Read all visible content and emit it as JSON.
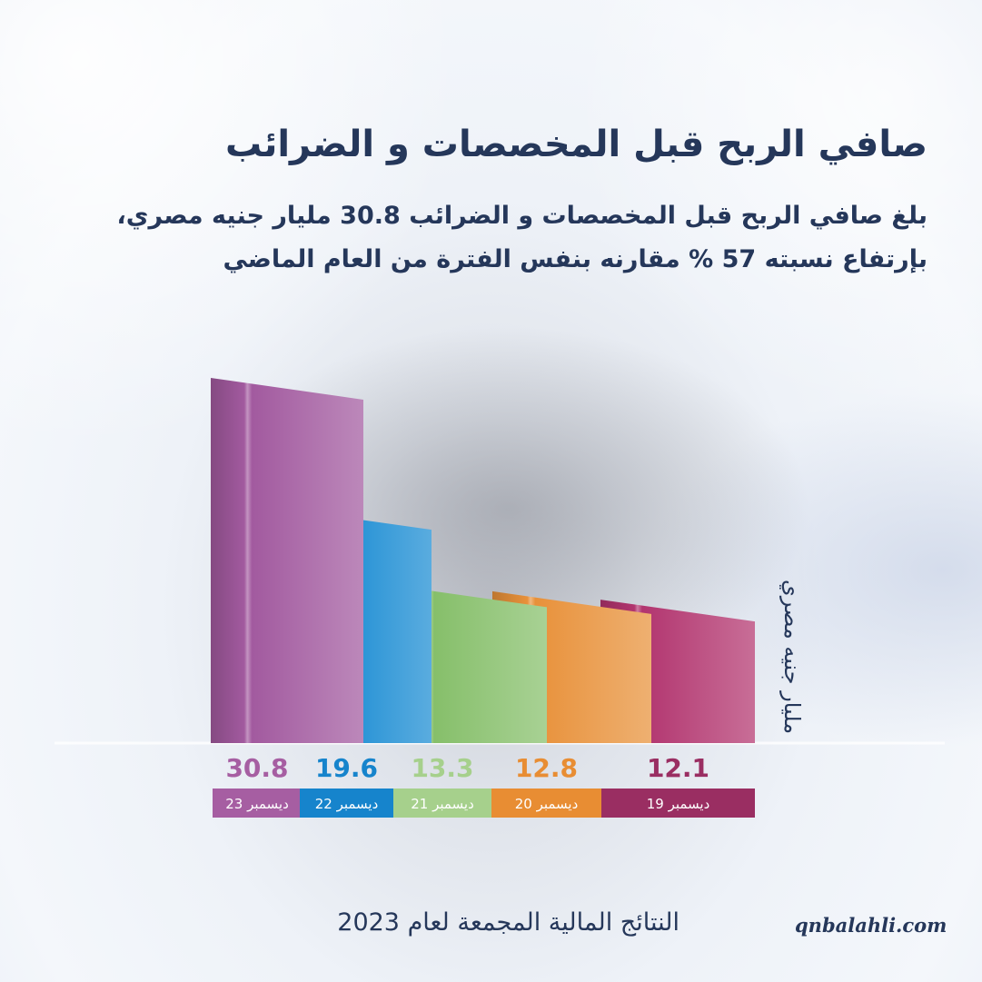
{
  "header": {
    "title": "صافي الربح قبل المخصصات و الضرائب",
    "subtitle_line1": "بلغ صافي الربح قبل المخصصات و الضرائب 30.8 مليار جنيه مصري،",
    "subtitle_line2": "بإرتفاع نسبته 57 % مقارنه بنفس الفترة من العام الماضي"
  },
  "footer": {
    "text": "النتائج المالية المجمعة لعام 2023",
    "website": "qnbalahli.com"
  },
  "chart_data": {
    "type": "bar",
    "categories": [
      "ديسمبر 23",
      "ديسمبر 22",
      "ديسمبر 21",
      "ديسمبر 20",
      "ديسمبر 19"
    ],
    "values": [
      30.8,
      19.6,
      13.3,
      12.8,
      12.1
    ],
    "value_labels": [
      "30.8",
      "19.6",
      "13.3",
      "12.8",
      "12.1"
    ],
    "colors": [
      "#a25a9f",
      "#1a8cd3",
      "#86bf6a",
      "#e8913a",
      "#b2356f"
    ],
    "label_colors": [
      "#a65ea2",
      "#1684cc",
      "#a6d08c",
      "#e88d33",
      "#9a2e62"
    ],
    "ylabel": "مليار جنيه مصري",
    "title": "",
    "grid": false
  }
}
